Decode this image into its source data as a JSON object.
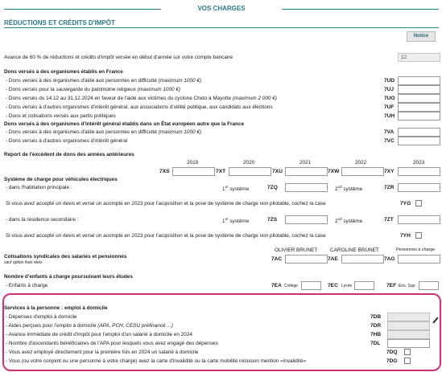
{
  "header": {
    "title": "VOS CHARGES"
  },
  "section": {
    "title": "RÉDUCTIONS ET CRÉDITS D'IMPÔT",
    "notice_label": "Notice"
  },
  "advance": {
    "label": "Avance de 60 % de réductions et crédits d'impôt versée en début d'année sur votre compte bancaire",
    "value": "12"
  },
  "dons_france": {
    "title": "Dons versés à des organismes établis en France",
    "rows": [
      {
        "label": "- Dons versés à des organismes d'aide aux personnes en difficulté",
        "note": "(maximum 1000 €)",
        "code": "7UD"
      },
      {
        "label": "- Dons versés pour la sauvegarde du patrimoine religieux",
        "note": "(maximum 1000 €)",
        "code": "7UJ"
      },
      {
        "label": "- Dons versés du 14.12 au 31.12.2024 en faveur de l'aide aux victimes du cyclone Chido à Mayotte",
        "note": "(maximum 2 000 €)",
        "code": "7UO"
      },
      {
        "label": "- Dons versés à d'autres organismes d'intérêt général, aux associations d'utilité publique, aux candidats aux élections",
        "note": "",
        "code": "7UF"
      },
      {
        "label": "- Dons et cotisations versés aux partis politiques",
        "note": "",
        "code": "7UH"
      }
    ]
  },
  "dons_ue": {
    "title": "Dons versés à des organismes d'intérêt général établis dans un État européen autre que la France",
    "rows": [
      {
        "label": "- Dons versés à des organismes d'aide aux personnes en difficulté",
        "note": "(maximum 1000 €)",
        "code": "7VA"
      },
      {
        "label": "- Dons versés à d'autres organismes d'intérêt général",
        "note": "",
        "code": "7VC"
      }
    ]
  },
  "excedent": {
    "title": "Report de l'excédent de dons des années antérieures",
    "years": [
      "2019",
      "2020",
      "2021",
      "2022",
      "2023"
    ],
    "codes": [
      "7XS",
      "7XT",
      "7XU",
      "7XW",
      "7XY"
    ]
  },
  "vehicules": {
    "title": "Système de charge pour véhicules électriques",
    "habitation_label": "- dans l'habitation principale :",
    "secondaire_label": "- dans la résidence secondaire :",
    "first_system": "1er système",
    "second_system": "2nd système",
    "codes": {
      "hp1": "7ZQ",
      "hp2": "7ZR",
      "rs1": "7ZS",
      "rs2": "7ZT",
      "chk1": "7YG",
      "chk2": "7YH"
    },
    "devis_label": "Si vous avez accepté un devis et versé un acompte en 2023 pour l'acquisition et la pose de système de charge non pilotable, cochez la case"
  },
  "cotisations": {
    "title": "Cotisations syndicales des salariés et pensionnés",
    "subtitle": "sauf option frais réels",
    "persons": [
      "OLIVIER BRUNET",
      "CAROLINE BRUNET",
      "Personnes à charge"
    ],
    "codes": [
      "7AC",
      "7AE",
      "7AG"
    ]
  },
  "enfants": {
    "title": "Nombre d'enfants à charge poursuivant leurs études",
    "label": "- Enfants à charge",
    "items": [
      {
        "code": "7EA",
        "label": "Collège"
      },
      {
        "code": "7EC",
        "label": "Lycée"
      },
      {
        "code": "7EF",
        "label": "Ens. Sup."
      }
    ]
  },
  "services": {
    "title": "Services à la personne : emploi à domicile",
    "rows": [
      {
        "label": "- Dépenses d'emploi à domicile",
        "code": "7DB"
      },
      {
        "label": "- Aides perçues pour l'emploi à domicile",
        "note": "(APA, PCH, CESU préfinancé ...)",
        "code": "7DR"
      },
      {
        "label": "- Avance immédiate de crédit d'impôt pour l'emploi d'un salarié à domicile en 2024",
        "code": "7HB"
      },
      {
        "label": "- Nombre d'ascendants bénéficiaires de l'APA pour lesquels vous avez engagé des dépenses",
        "code": "7DL"
      },
      {
        "label": "- Vous avez employé directement pour la première fois en 2024 un salarié à domicile",
        "code": "7DQ"
      },
      {
        "label": "- Vous (ou votre conjoint ou une personne à votre charge) avez la carte d'invalidité ou la carte mobilité inclusion mention «invalidité»",
        "code": "7DG"
      }
    ]
  }
}
